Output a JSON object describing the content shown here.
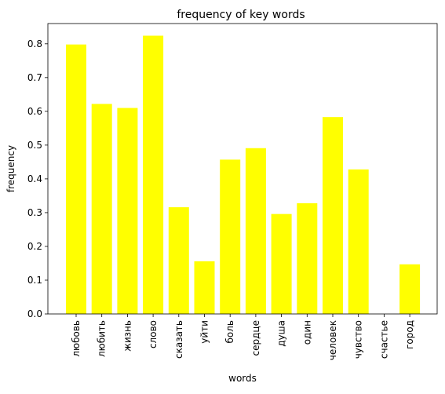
{
  "chart_data": {
    "type": "bar",
    "title": "frequency of key words",
    "xlabel": "words",
    "ylabel": "frequency",
    "categories": [
      "любовь",
      "любить",
      "жизнь",
      "слово",
      "сказать",
      "уйти",
      "боль",
      "сердце",
      "душа",
      "один",
      "человек",
      "чувство",
      "счастье",
      "город"
    ],
    "values": [
      0.798,
      0.622,
      0.61,
      0.824,
      0.316,
      0.156,
      0.457,
      0.491,
      0.296,
      0.328,
      0.583,
      0.428,
      0.0,
      0.147
    ],
    "ylim": [
      0,
      0.86
    ],
    "yticks": [
      "0.0",
      "0.1",
      "0.2",
      "0.3",
      "0.4",
      "0.5",
      "0.6",
      "0.7",
      "0.8"
    ],
    "bar_color": "#ffff00",
    "grid": false,
    "legend": false
  }
}
